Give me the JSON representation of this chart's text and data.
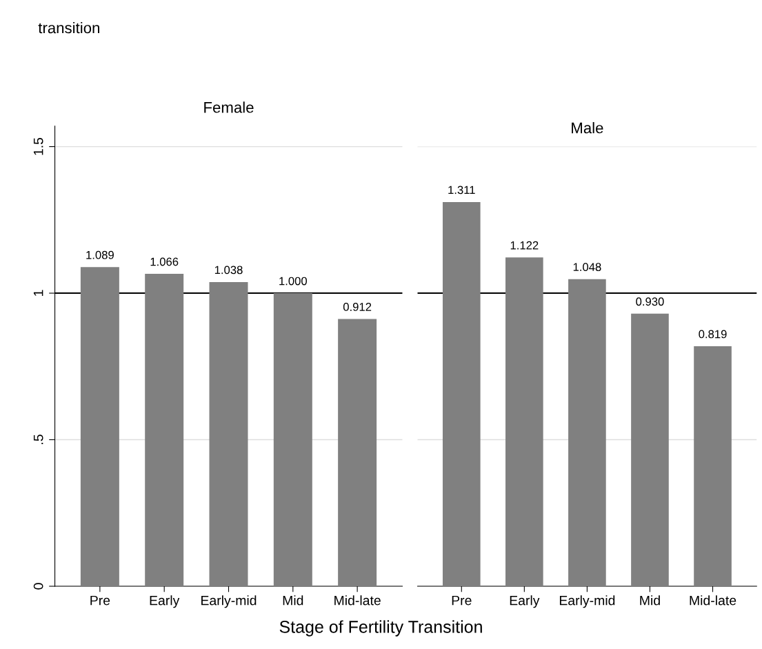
{
  "chart_data": [
    {
      "type": "bar",
      "title": "Female",
      "xlabel": "Stage of Fertility Transition",
      "annotations": [
        "transition"
      ],
      "categories": [
        "Pre",
        "Early",
        "Early-mid",
        "Mid",
        "Mid-late"
      ],
      "values": [
        1.089,
        1.066,
        1.038,
        1.0,
        0.912
      ],
      "color": "#808080",
      "value_labels": [
        "1.089",
        "1.066",
        "1.038",
        "1.000",
        "0.912"
      ],
      "ylim": [
        0,
        1.57
      ],
      "yticks": [
        0,
        {
          "value": 0.5,
          "label": ".5"
        },
        1,
        1.5
      ],
      "grid": "y",
      "ref_lines": [
        {
          "axis": "y",
          "value": 1,
          "color": "#000000"
        }
      ]
    },
    {
      "type": "bar",
      "title": "Male",
      "categories": [
        "Pre",
        "Early",
        "Early-mid",
        "Mid",
        "Mid-late"
      ],
      "values": [
        1.311,
        1.122,
        1.048,
        0.93,
        0.819
      ],
      "color": "#808080",
      "value_labels": [
        "1.311",
        "1.122",
        "1.048",
        "0.930",
        "0.819"
      ],
      "ylim": [
        0,
        1.5
      ],
      "yticks": [
        0,
        0.5,
        1,
        1.5
      ],
      "grid": "y",
      "tick_labels": "x",
      "ref_lines": [
        {
          "axis": "y",
          "value": 1,
          "color": "#000000"
        }
      ]
    }
  ]
}
